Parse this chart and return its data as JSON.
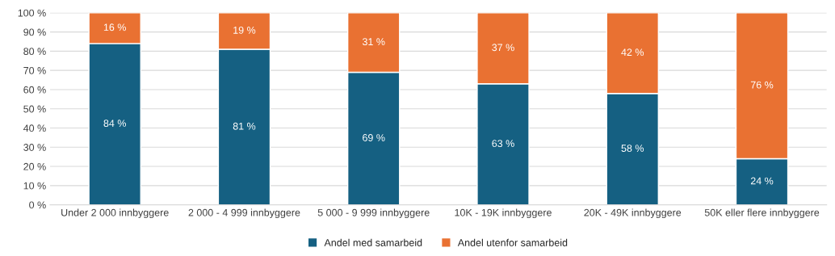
{
  "chart_data": {
    "type": "bar",
    "stacked": true,
    "categories": [
      "Under 2 000 innbyggere",
      "2 000 - 4 999 innbyggere",
      "5 000 - 9 999 innbyggere",
      "10K - 19K innbyggere",
      "20K - 49K innbyggere",
      "50K eller flere innbyggere"
    ],
    "series": [
      {
        "name": "Andel med samarbeid",
        "color": "#156082",
        "values": [
          84,
          81,
          69,
          63,
          58,
          24
        ],
        "value_labels": [
          "84 %",
          "81 %",
          "69 %",
          "63 %",
          "58 %",
          "24 %"
        ]
      },
      {
        "name": "Andel utenfor samarbeid",
        "color": "#e97132",
        "values": [
          16,
          19,
          31,
          37,
          42,
          76
        ],
        "value_labels": [
          "16 %",
          "19 %",
          "31 %",
          "37 %",
          "42 %",
          "76 %"
        ]
      }
    ],
    "ylim": [
      0,
      100
    ],
    "yticks": [
      {
        "value": 0,
        "label": "0 %"
      },
      {
        "value": 10,
        "label": "10 %"
      },
      {
        "value": 20,
        "label": "20 %"
      },
      {
        "value": 30,
        "label": "30 %"
      },
      {
        "value": 40,
        "label": "40 %"
      },
      {
        "value": 50,
        "label": "50 %"
      },
      {
        "value": 60,
        "label": "60 %"
      },
      {
        "value": 70,
        "label": "70 %"
      },
      {
        "value": 80,
        "label": "80 %"
      },
      {
        "value": 90,
        "label": "90 %"
      },
      {
        "value": 100,
        "label": "100 %"
      }
    ],
    "grid": "y",
    "legend": "bottom"
  }
}
